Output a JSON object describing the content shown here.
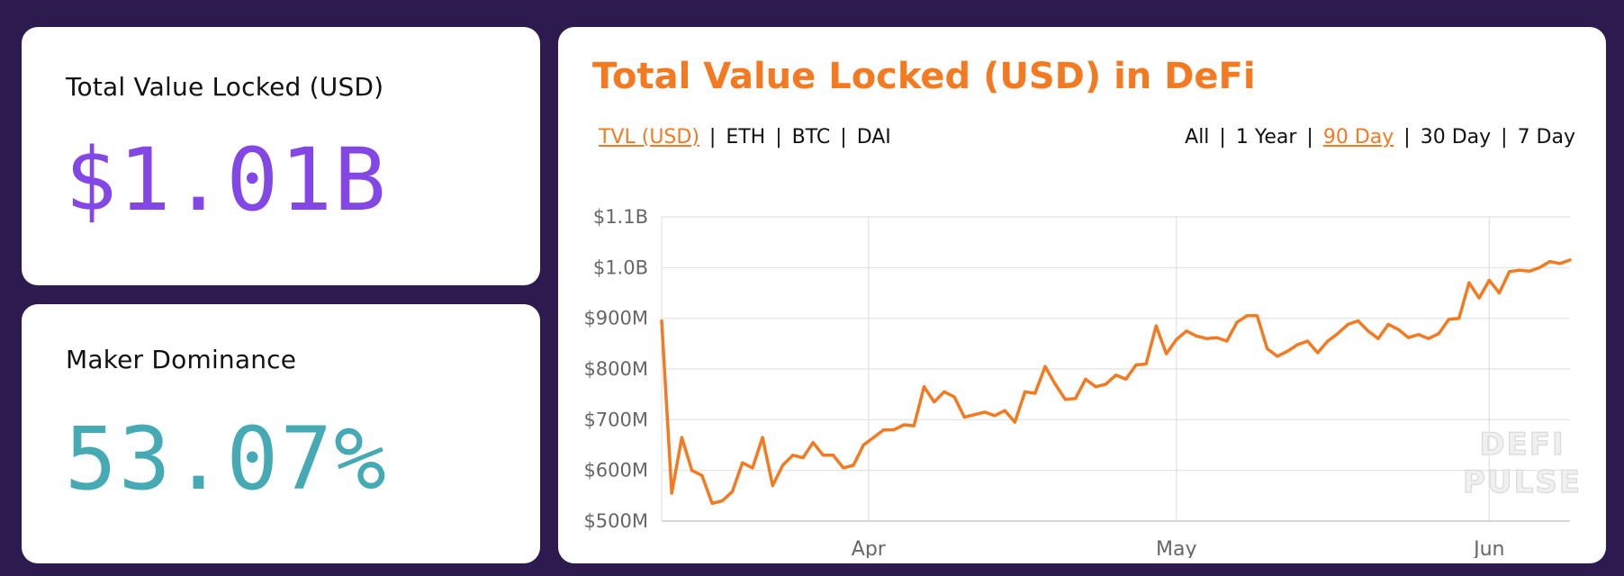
{
  "stats": {
    "tvl": {
      "label": "Total Value Locked (USD)",
      "value": "$1.01B"
    },
    "maker": {
      "label": "Maker Dominance",
      "value": "53.07%"
    }
  },
  "chart_panel": {
    "title": "Total Value Locked (USD) in DeFi",
    "metric_tabs": [
      {
        "label": "TVL (USD)",
        "active": true
      },
      {
        "label": "ETH",
        "active": false
      },
      {
        "label": "BTC",
        "active": false
      },
      {
        "label": "DAI",
        "active": false
      }
    ],
    "range_tabs": [
      {
        "label": "All",
        "active": false
      },
      {
        "label": "1 Year",
        "active": false
      },
      {
        "label": "90 Day",
        "active": true
      },
      {
        "label": "30 Day",
        "active": false
      },
      {
        "label": "7 Day",
        "active": false
      }
    ],
    "watermark": [
      "DEFI",
      "PULSE"
    ]
  },
  "colors": {
    "accent": "#f47a22",
    "tvl_value": "#8247e5",
    "maker_value": "#46aab5",
    "background": "#2d1a4e"
  },
  "chart_data": {
    "type": "line",
    "title": "Total Value Locked (USD) in DeFi",
    "xlabel": "",
    "ylabel": "",
    "ylim": [
      500,
      1100
    ],
    "y_unit": "millions USD",
    "y_ticks": [
      {
        "value": 500,
        "label": "$500M"
      },
      {
        "value": 600,
        "label": "$600M"
      },
      {
        "value": 700,
        "label": "$700M"
      },
      {
        "value": 800,
        "label": "$800M"
      },
      {
        "value": 900,
        "label": "$900M"
      },
      {
        "value": 1000,
        "label": "$1.0B"
      },
      {
        "value": 1100,
        "label": "$1.1B"
      }
    ],
    "x_ticks": [
      {
        "day": 20.5,
        "label": "Apr"
      },
      {
        "day": 51,
        "label": "May"
      },
      {
        "day": 82,
        "label": "Jun"
      }
    ],
    "xlim": [
      0,
      90
    ],
    "grid": true,
    "series": [
      {
        "color": "#f47a22",
        "x": [
          0,
          1,
          2,
          3,
          4,
          5,
          6,
          7,
          8,
          9,
          10,
          11,
          12,
          13,
          14,
          15,
          16,
          17,
          18,
          19,
          20,
          21,
          22,
          23,
          24,
          25,
          26,
          27,
          28,
          29,
          30,
          31,
          32,
          33,
          34,
          35,
          36,
          37,
          38,
          39,
          40,
          41,
          42,
          43,
          44,
          45,
          46,
          47,
          48,
          49,
          50,
          51,
          52,
          53,
          54,
          55,
          56,
          57,
          58,
          59,
          60,
          61,
          62,
          63,
          64,
          65,
          66,
          67,
          68,
          69,
          70,
          71,
          72,
          73,
          74,
          75,
          76,
          77,
          78,
          79,
          80,
          81,
          82,
          83,
          84,
          85,
          86,
          87,
          88,
          89,
          90
        ],
        "values": [
          895,
          555,
          665,
          600,
          590,
          535,
          540,
          558,
          615,
          605,
          665,
          570,
          610,
          630,
          625,
          655,
          630,
          630,
          605,
          610,
          650,
          665,
          680,
          680,
          690,
          688,
          765,
          735,
          755,
          745,
          705,
          710,
          715,
          708,
          718,
          695,
          755,
          752,
          805,
          770,
          740,
          742,
          780,
          765,
          770,
          788,
          780,
          808,
          810,
          885,
          830,
          858,
          875,
          865,
          860,
          862,
          855,
          892,
          905,
          905,
          840,
          825,
          835,
          848,
          855,
          832,
          855,
          870,
          888,
          895,
          875,
          860,
          888,
          878,
          862,
          868,
          860,
          870,
          898,
          900,
          970,
          940,
          975,
          950,
          992,
          995,
          993,
          1000,
          1012,
          1008,
          1015
        ]
      }
    ]
  }
}
